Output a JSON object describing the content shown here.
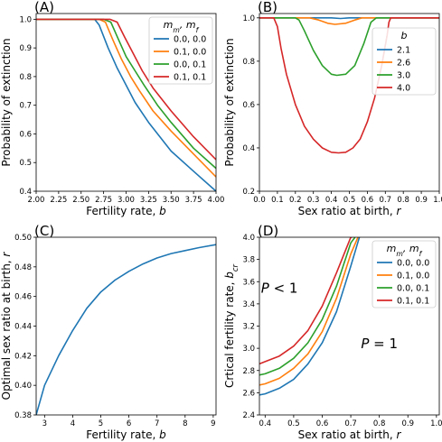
{
  "colors": {
    "blue": "#1f77b4",
    "orange": "#ff7f0e",
    "green": "#2ca02c",
    "red": "#d62728"
  },
  "chart_data": [
    {
      "panel": "(A)",
      "type": "line",
      "xlabel": "Fertility rate, b",
      "ylabel": "Probability of extinction",
      "xlim": [
        2.0,
        4.0
      ],
      "ylim": [
        0.4,
        1.02
      ],
      "xticks": [
        "2.00",
        "2.25",
        "2.50",
        "2.75",
        "3.00",
        "3.25",
        "3.50",
        "3.75",
        "4.00"
      ],
      "yticks": [
        "0.4",
        "0.5",
        "0.6",
        "0.7",
        "0.8",
        "0.9",
        "1.0"
      ],
      "legend": {
        "title": "m_m, m_f",
        "placement": "top-right"
      },
      "series": [
        {
          "name": "0.0, 0.0",
          "color": "#1f77b4",
          "x": [
            2.0,
            2.5,
            2.65,
            2.7,
            2.8,
            2.9,
            3.0,
            3.1,
            3.25,
            3.5,
            3.75,
            4.0
          ],
          "y": [
            1.0,
            1.0,
            1.0,
            0.98,
            0.9,
            0.83,
            0.77,
            0.71,
            0.64,
            0.54,
            0.47,
            0.4
          ]
        },
        {
          "name": "0.1, 0.0",
          "color": "#ff7f0e",
          "x": [
            2.0,
            2.7,
            2.77,
            2.85,
            2.95,
            3.05,
            3.15,
            3.3,
            3.5,
            3.75,
            4.0
          ],
          "y": [
            1.0,
            1.0,
            0.99,
            0.93,
            0.86,
            0.8,
            0.75,
            0.68,
            0.61,
            0.53,
            0.45
          ]
        },
        {
          "name": "0.0, 0.1",
          "color": "#2ca02c",
          "x": [
            2.0,
            2.75,
            2.83,
            2.9,
            3.0,
            3.1,
            3.2,
            3.35,
            3.5,
            3.75,
            4.0
          ],
          "y": [
            1.0,
            1.0,
            0.99,
            0.94,
            0.87,
            0.82,
            0.77,
            0.7,
            0.64,
            0.55,
            0.48
          ]
        },
        {
          "name": "0.1, 0.1",
          "color": "#d62728",
          "x": [
            2.0,
            2.82,
            2.9,
            2.98,
            3.08,
            3.18,
            3.3,
            3.5,
            3.75,
            4.0
          ],
          "y": [
            1.0,
            1.0,
            0.99,
            0.94,
            0.88,
            0.82,
            0.76,
            0.68,
            0.59,
            0.51
          ]
        }
      ]
    },
    {
      "panel": "(B)",
      "type": "line",
      "xlabel": "Sex ratio at birth, r",
      "ylabel": "Probability of extinction",
      "xlim": [
        0.0,
        1.0
      ],
      "ylim": [
        0.2,
        1.02
      ],
      "xticks": [
        "0.0",
        "0.1",
        "0.2",
        "0.3",
        "0.4",
        "0.5",
        "0.6",
        "0.7",
        "0.8",
        "0.9",
        "1.0"
      ],
      "yticks": [
        "0.2",
        "0.4",
        "0.6",
        "0.8",
        "1.0"
      ],
      "legend": {
        "title": "b",
        "placement": "right"
      },
      "series": [
        {
          "name": "2.1",
          "color": "#1f77b4",
          "x": [
            0.0,
            0.4,
            0.45,
            0.5,
            1.0
          ],
          "y": [
            1.0,
            1.0,
            0.997,
            1.0,
            1.0
          ]
        },
        {
          "name": "2.6",
          "color": "#ff7f0e",
          "x": [
            0.0,
            0.28,
            0.33,
            0.38,
            0.42,
            0.48,
            0.53,
            0.57,
            1.0
          ],
          "y": [
            1.0,
            1.0,
            0.99,
            0.975,
            0.97,
            0.975,
            0.99,
            1.0,
            1.0
          ]
        },
        {
          "name": "3.0",
          "color": "#2ca02c",
          "x": [
            0.0,
            0.2,
            0.22,
            0.25,
            0.3,
            0.35,
            0.4,
            0.43,
            0.48,
            0.53,
            0.58,
            0.62,
            0.65,
            1.0
          ],
          "y": [
            1.0,
            1.0,
            0.99,
            0.94,
            0.85,
            0.78,
            0.74,
            0.735,
            0.74,
            0.78,
            0.88,
            0.98,
            1.0,
            1.0
          ]
        },
        {
          "name": "4.0",
          "color": "#d62728",
          "x": [
            0.0,
            0.08,
            0.1,
            0.12,
            0.15,
            0.2,
            0.25,
            0.3,
            0.35,
            0.4,
            0.44,
            0.48,
            0.52,
            0.56,
            0.6,
            0.64,
            0.68,
            0.71,
            0.72,
            0.73,
            1.0
          ],
          "y": [
            1.0,
            1.0,
            0.96,
            0.86,
            0.74,
            0.6,
            0.5,
            0.44,
            0.4,
            0.38,
            0.377,
            0.38,
            0.4,
            0.44,
            0.52,
            0.63,
            0.78,
            0.92,
            0.98,
            1.0,
            1.0
          ]
        }
      ]
    },
    {
      "panel": "(C)",
      "type": "line",
      "xlabel": "Fertility rate, b",
      "ylabel": "Optimal sex ratio at birth, r",
      "xlim": [
        2.7,
        9.1
      ],
      "ylim": [
        0.38,
        0.5
      ],
      "xticks": [
        "3",
        "4",
        "5",
        "6",
        "7",
        "8",
        "9"
      ],
      "yticks": [
        "0.38",
        "0.40",
        "0.42",
        "0.44",
        "0.46",
        "0.48",
        "0.50"
      ],
      "series": [
        {
          "color": "#1f77b4",
          "x": [
            2.7,
            3.0,
            3.5,
            4.0,
            4.5,
            5.0,
            5.5,
            6.0,
            6.5,
            7.0,
            7.5,
            8.0,
            8.5,
            9.1
          ],
          "y": [
            0.38,
            0.4,
            0.42,
            0.437,
            0.452,
            0.463,
            0.471,
            0.477,
            0.482,
            0.486,
            0.489,
            0.491,
            0.493,
            0.495
          ]
        }
      ]
    },
    {
      "panel": "(D)",
      "type": "line",
      "xlabel": "Sex ratio at birth, r",
      "ylabel": "Crtical fertility rate, b_cr",
      "xlim": [
        0.38,
        1.01
      ],
      "ylim": [
        2.4,
        4.0
      ],
      "xticks": [
        "0.4",
        "0.5",
        "0.6",
        "0.7",
        "0.8",
        "0.9",
        "1.0"
      ],
      "yticks": [
        "2.4",
        "2.6",
        "2.8",
        "3.0",
        "3.2",
        "3.4",
        "3.6",
        "3.8",
        "4.0"
      ],
      "legend": {
        "title": "m_m, m_f",
        "placement": "top-right"
      },
      "annotations": [
        {
          "text": "P < 1",
          "x": 0.45,
          "y": 3.5
        },
        {
          "text": "P = 1",
          "x": 0.8,
          "y": 3.0
        }
      ],
      "series": [
        {
          "name": "0.0, 0.0",
          "color": "#1f77b4",
          "x": [
            0.38,
            0.4,
            0.45,
            0.5,
            0.55,
            0.6,
            0.65,
            0.7,
            0.73
          ],
          "y": [
            2.58,
            2.59,
            2.64,
            2.72,
            2.86,
            3.05,
            3.33,
            3.74,
            4.0
          ]
        },
        {
          "name": "0.1, 0.0",
          "color": "#ff7f0e",
          "x": [
            0.38,
            0.4,
            0.45,
            0.5,
            0.55,
            0.6,
            0.65,
            0.7,
            0.725
          ],
          "y": [
            2.67,
            2.68,
            2.73,
            2.82,
            2.95,
            3.15,
            3.45,
            3.85,
            4.0
          ]
        },
        {
          "name": "0.0, 0.1",
          "color": "#2ca02c",
          "x": [
            0.38,
            0.4,
            0.45,
            0.5,
            0.55,
            0.6,
            0.65,
            0.7,
            0.715
          ],
          "y": [
            2.76,
            2.77,
            2.82,
            2.91,
            3.05,
            3.26,
            3.56,
            3.95,
            4.0
          ]
        },
        {
          "name": "0.1, 0.1",
          "color": "#d62728",
          "x": [
            0.38,
            0.4,
            0.45,
            0.5,
            0.55,
            0.6,
            0.65,
            0.7,
            0.705
          ],
          "y": [
            2.86,
            2.88,
            2.93,
            3.02,
            3.16,
            3.38,
            3.68,
            4.0,
            4.0
          ]
        }
      ]
    }
  ]
}
